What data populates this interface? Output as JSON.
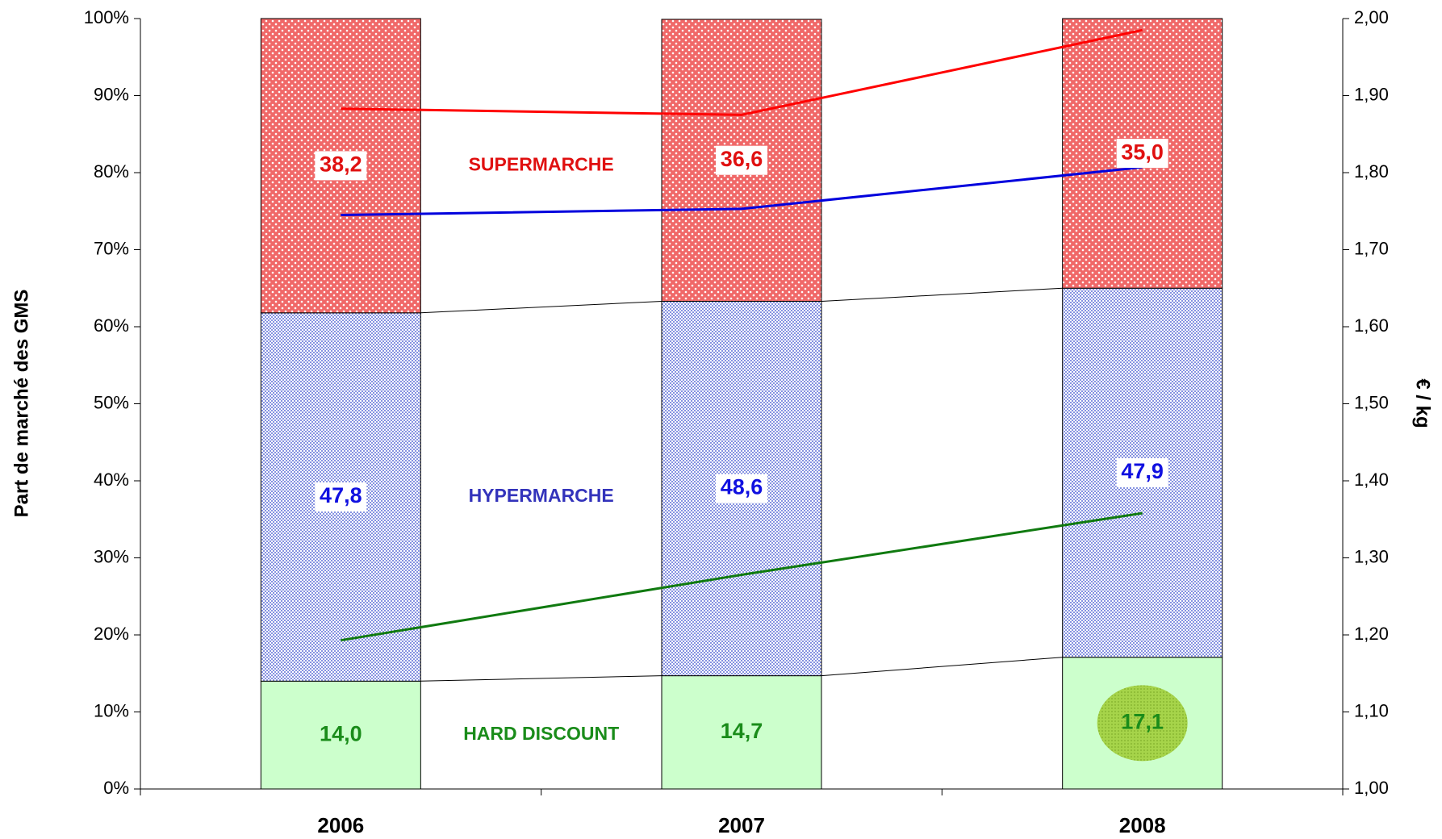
{
  "chart_data": {
    "type": "bar",
    "stacked": true,
    "y_label": "Part de marché des GMS",
    "y2_label": "€ / kg",
    "categories": [
      "2006",
      "2007",
      "2008"
    ],
    "series": [
      {
        "name": "HARD DISCOUNT",
        "color": "#ccffcc",
        "label_color": "#1a8c1a",
        "values": [
          14.0,
          14.7,
          17.1
        ],
        "value_labels": [
          "14,0",
          "14,7",
          "17,1"
        ]
      },
      {
        "name": "HYPERMARCHE",
        "color": "#aab4ee",
        "label_color": "#1010e0",
        "values": [
          47.8,
          48.6,
          47.9
        ],
        "value_labels": [
          "47,8",
          "48,6",
          "47,9"
        ]
      },
      {
        "name": "SUPERMARCHE",
        "color": "#f06868",
        "label_color": "#e01010",
        "values": [
          38.2,
          36.6,
          35.0
        ],
        "value_labels": [
          "38,2",
          "36,6",
          "35,0"
        ]
      }
    ],
    "lines": [
      {
        "color": "#ff0000",
        "axis": "y2",
        "values": [
          1.883,
          1.875,
          1.985
        ]
      },
      {
        "color": "#0000dd",
        "axis": "y2",
        "values": [
          1.745,
          1.753,
          1.807
        ]
      },
      {
        "color": "#107a10",
        "axis": "y2",
        "values": [
          1.193,
          1.278,
          1.358
        ]
      }
    ],
    "ylim": [
      0,
      100
    ],
    "yticks": [
      {
        "value": 0,
        "label": "0%"
      },
      {
        "value": 10,
        "label": "10%"
      },
      {
        "value": 20,
        "label": "20%"
      },
      {
        "value": 30,
        "label": "30%"
      },
      {
        "value": 40,
        "label": "40%"
      },
      {
        "value": 50,
        "label": "50%"
      },
      {
        "value": 60,
        "label": "60%"
      },
      {
        "value": 70,
        "label": "70%"
      },
      {
        "value": 80,
        "label": "80%"
      },
      {
        "value": 90,
        "label": "90%"
      },
      {
        "value": 100,
        "label": "100%"
      }
    ],
    "y2lim": [
      1,
      2
    ],
    "y2ticks": [
      {
        "value": 1,
        "label": "1,00"
      },
      {
        "value": 1.1,
        "label": "1,10"
      },
      {
        "value": 1.2,
        "label": "1,20"
      },
      {
        "value": 1.3,
        "label": "1,30"
      },
      {
        "value": 1.4,
        "label": "1,40"
      },
      {
        "value": 1.5,
        "label": "1,50"
      },
      {
        "value": 1.6,
        "label": "1,60"
      },
      {
        "value": 1.7,
        "label": "1,70"
      },
      {
        "value": 1.8,
        "label": "1,80"
      },
      {
        "value": 1.9,
        "label": "1,90"
      },
      {
        "value": 2,
        "label": "2,00"
      }
    ]
  }
}
